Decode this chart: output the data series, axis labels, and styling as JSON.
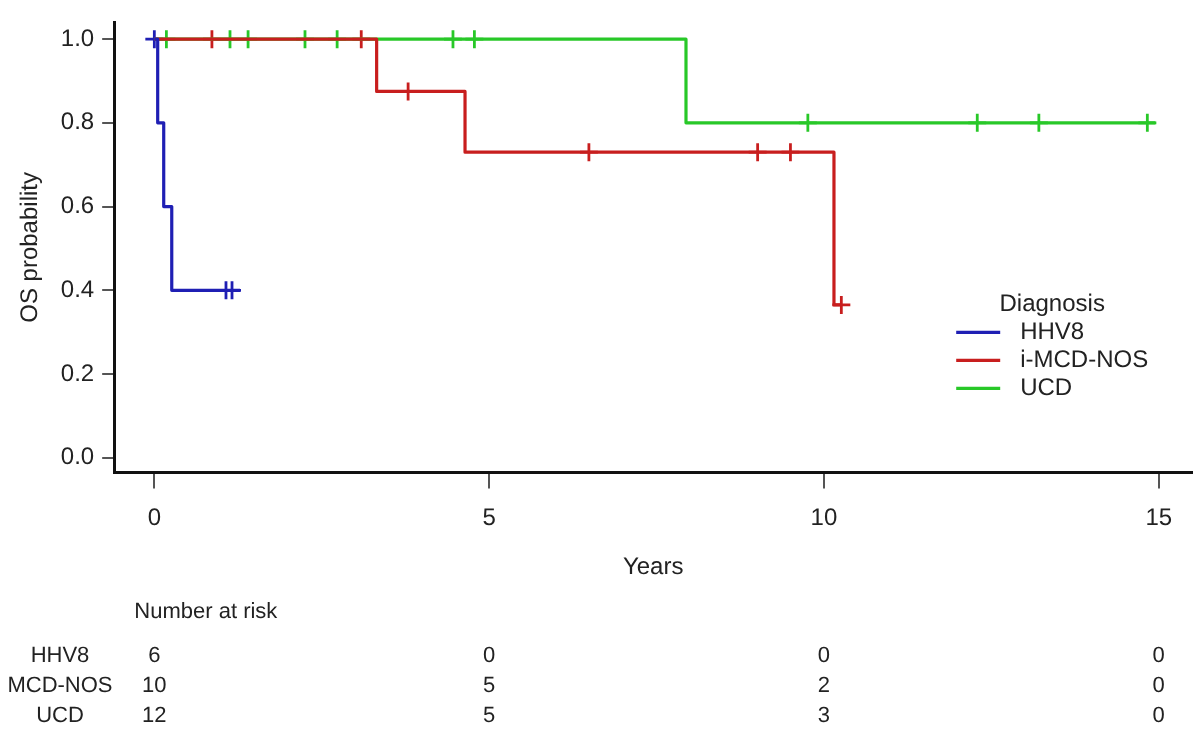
{
  "chart_data": {
    "type": "step",
    "xlabel": "Years",
    "ylabel": "OS probability",
    "legend_title": "Diagnosis",
    "legend": "bottom right",
    "grid": false,
    "xlim": [
      -0.6,
      15.5
    ],
    "xticks": [
      0,
      5,
      10,
      15
    ],
    "ylim": [
      -0.035,
      1.04
    ],
    "yticks": [
      {
        "value": 0,
        "label": "0.0"
      },
      {
        "value": 0.2,
        "label": "0.2"
      },
      {
        "value": 0.4,
        "label": "0.4"
      },
      {
        "value": 0.6,
        "label": "0.6"
      },
      {
        "value": 0.8,
        "label": "0.8"
      },
      {
        "value": 1,
        "label": "1.0"
      }
    ],
    "series": [
      {
        "name": "HHV8",
        "color": "#1f1fb4",
        "marker": "none",
        "x": [
          0,
          0.05,
          0.14,
          0.26,
          1.28
        ],
        "values": [
          1,
          0.8,
          0.6,
          0.4,
          0.4
        ]
      },
      {
        "name": "i-MCD-NOS",
        "color": "#c81e1e",
        "marker": "none",
        "x": [
          0,
          3.32,
          4.64,
          10.15,
          10.26
        ],
        "values": [
          1,
          0.875,
          0.73,
          0.365,
          0.365
        ]
      },
      {
        "name": "UCD",
        "color": "#28c828",
        "marker": "none",
        "x": [
          0,
          7.94,
          14.95
        ],
        "values": [
          1,
          0.8,
          0.8
        ]
      },
      {
        "type": "scatter",
        "color": "#1f1fb4",
        "marker": "cross",
        "x": [
          0,
          1.07,
          1.16
        ],
        "values": [
          1,
          0.4,
          0.4
        ]
      },
      {
        "type": "scatter",
        "color": "#c81e1e",
        "marker": "cross",
        "x": [
          0.86,
          3.09,
          3.79,
          6.49,
          9.01,
          9.5,
          10.26
        ],
        "values": [
          1,
          1,
          0.875,
          0.73,
          0.73,
          0.73,
          0.365
        ]
      },
      {
        "type": "scatter",
        "color": "#28c828",
        "marker": "cross",
        "x": [
          0.18,
          1.13,
          1.4,
          2.25,
          2.73,
          4.46,
          4.78,
          9.76,
          12.29,
          13.21,
          14.83
        ],
        "values": [
          1,
          1,
          1,
          1,
          1,
          1,
          1,
          0.8,
          0.8,
          0.8,
          0.8
        ]
      }
    ],
    "annotations": [
      "Number at risk",
      "HHV8",
      "6",
      "0",
      "0",
      "0",
      "MCD-NOS",
      "10",
      "5",
      "2",
      "0",
      "UCD",
      "12",
      "5",
      "3",
      "0"
    ]
  }
}
